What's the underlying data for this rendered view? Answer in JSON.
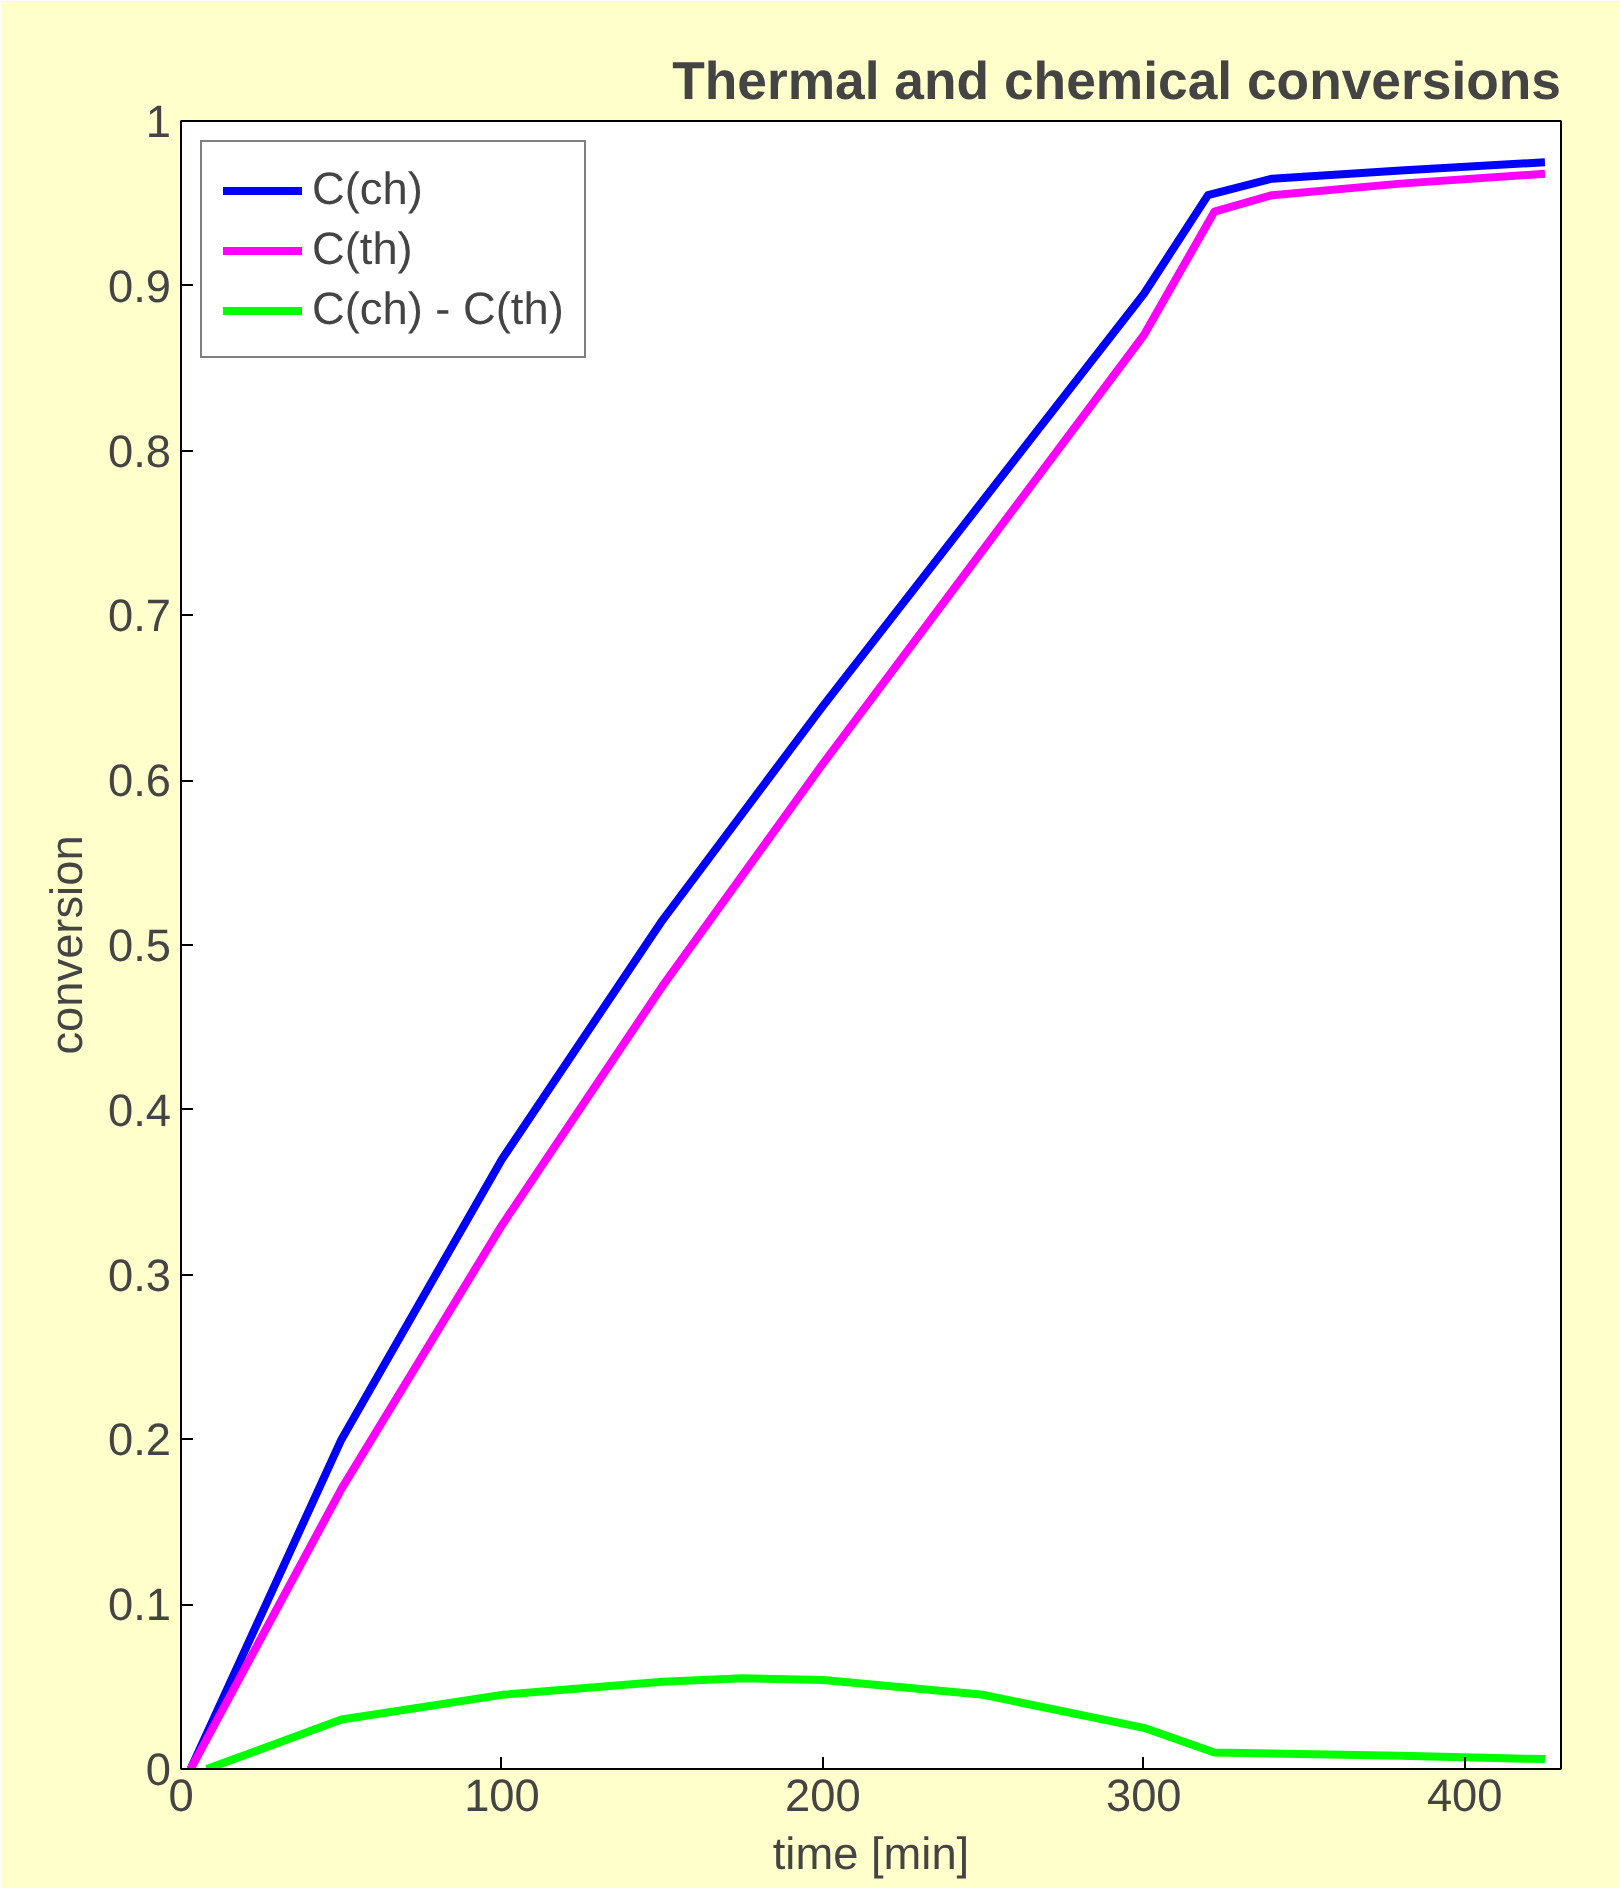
{
  "chart_data": {
    "type": "line",
    "title": "Thermal and chemical conversions",
    "xlabel": "time [min]",
    "ylabel": "conversion",
    "xlim": [
      0,
      430
    ],
    "ylim": [
      0,
      1
    ],
    "xticks": [
      0,
      100,
      200,
      300,
      400
    ],
    "yticks": [
      0,
      {
        "value": 0.1,
        "label": "0.1"
      },
      {
        "value": 0.2,
        "label": "0.2"
      },
      {
        "value": 0.3,
        "label": "0.3"
      },
      {
        "value": 0.4,
        "label": "0.4"
      },
      {
        "value": 0.5,
        "label": "0.5"
      },
      {
        "value": 0.6,
        "label": "0.6"
      },
      {
        "value": 0.7,
        "label": "0.7"
      },
      {
        "value": 0.8,
        "label": "0.8"
      },
      {
        "value": 0.9,
        "label": "0.9"
      },
      1
    ],
    "grid": false,
    "legend": "top left",
    "marker": "none",
    "line_style": "solid",
    "series": [
      {
        "name": "C(ch)",
        "color": "#0000ff",
        "x": [
          3,
          50,
          100,
          150,
          200,
          250,
          300,
          320,
          340,
          380,
          425
        ],
        "values": [
          0,
          0.2,
          0.37,
          0.515,
          0.645,
          0.77,
          0.895,
          0.955,
          0.965,
          0.97,
          0.975
        ]
      },
      {
        "name": "C(th)",
        "color": "#ff00ff",
        "x": [
          3,
          50,
          100,
          150,
          200,
          250,
          300,
          322,
          340,
          380,
          425
        ],
        "values": [
          0,
          0.17,
          0.33,
          0.475,
          0.61,
          0.74,
          0.87,
          0.945,
          0.955,
          0.962,
          0.968
        ]
      },
      {
        "name": "C(ch) - C(th)",
        "color": "#00ff00",
        "x": [
          8,
          50,
          100,
          150,
          175,
          200,
          250,
          300,
          322,
          380,
          425
        ],
        "values": [
          0,
          0.03,
          0.045,
          0.053,
          0.055,
          0.054,
          0.045,
          0.025,
          0.01,
          0.008,
          0.006
        ]
      }
    ]
  }
}
